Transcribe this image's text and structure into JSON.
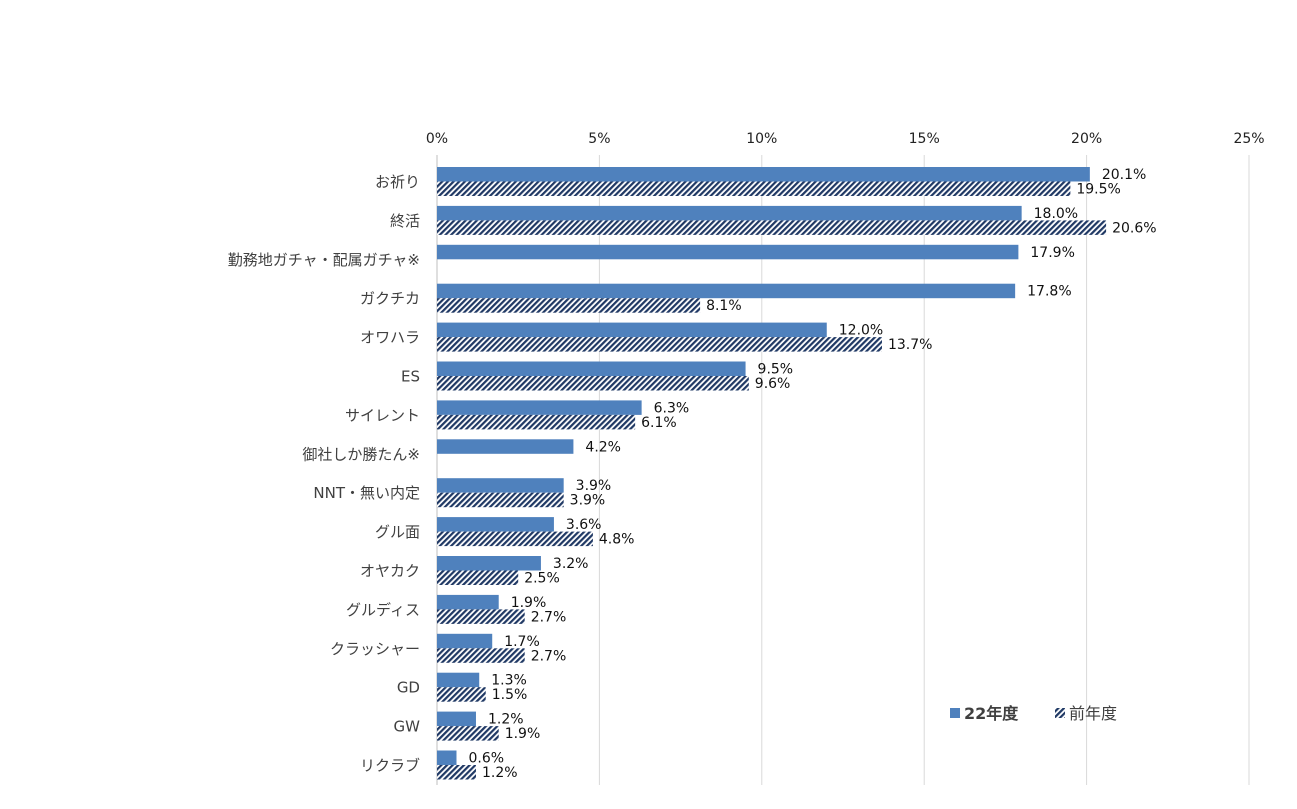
{
  "chart_data": {
    "type": "bar",
    "orientation": "horizontal",
    "categories": [
      "お祈り",
      "終活",
      "勤務地ガチャ・配属ガチャ※",
      "ガクチカ",
      "オワハラ",
      "ES",
      "サイレント",
      "御社しか勝たん※",
      "NNT・無い内定",
      "グル面",
      "オヤカク",
      "グルディス",
      "クラッシャー",
      "GD",
      "GW",
      "リクラブ"
    ],
    "series": [
      {
        "name": "22年度",
        "color": "#4F81BD",
        "pattern": "solid",
        "values": [
          20.1,
          18.0,
          17.9,
          17.8,
          12.0,
          9.5,
          6.3,
          4.2,
          3.9,
          3.6,
          3.2,
          1.9,
          1.7,
          1.3,
          1.2,
          0.6
        ],
        "labels": [
          "20.1%",
          "18.0%",
          "17.9%",
          "17.8%",
          "12.0%",
          "9.5%",
          "6.3%",
          "4.2%",
          "3.9%",
          "3.6%",
          "3.2%",
          "1.9%",
          "1.7%",
          "1.3%",
          "1.2%",
          "0.6%"
        ]
      },
      {
        "name": "前年度",
        "color": "#1F3864",
        "pattern": "diagonal-stripes",
        "values": [
          19.5,
          20.6,
          null,
          8.1,
          13.7,
          9.6,
          6.1,
          null,
          3.9,
          4.8,
          2.5,
          2.7,
          2.7,
          1.5,
          1.9,
          1.2
        ],
        "labels": [
          "19.5%",
          "20.6%",
          null,
          "8.1%",
          "13.7%",
          "9.6%",
          "6.1%",
          null,
          "3.9%",
          "4.8%",
          "2.5%",
          "2.7%",
          "2.7%",
          "1.5%",
          "1.9%",
          "1.2%"
        ]
      }
    ],
    "xlim": [
      0,
      25
    ],
    "xticks": [
      0,
      5,
      10,
      15,
      20,
      25
    ],
    "xtick_labels": [
      "0%",
      "5%",
      "10%",
      "15%",
      "20%",
      "25%"
    ],
    "axis_position": "top",
    "grid": true,
    "legend_position": "bottom-right",
    "title": "",
    "xlabel": "",
    "ylabel": ""
  }
}
